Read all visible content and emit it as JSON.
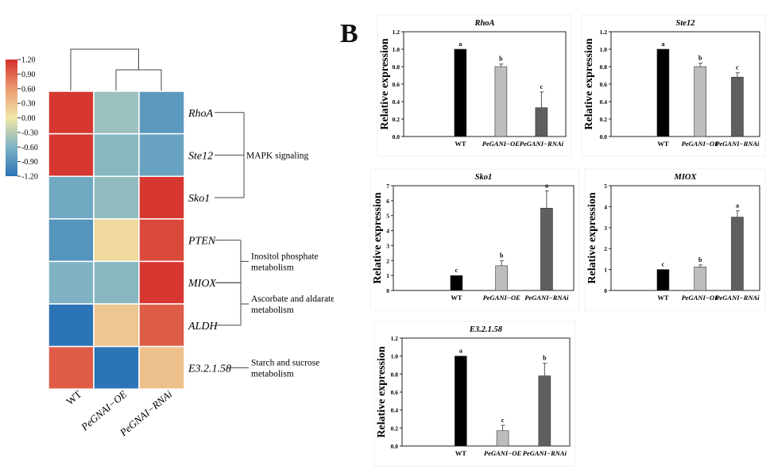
{
  "colors": {
    "wt": "#000000",
    "oe": "#bdbdbd",
    "rnai": "#5f5f5f",
    "heat_high": "#d42f2b",
    "heat_mid": "#f0e6a6",
    "heat_low": "#2b74b6"
  },
  "heatmap": {
    "legend_ticks": [
      "1.20",
      "0.90",
      "0.60",
      "0.30",
      "0.00",
      "-0.30",
      "-0.60",
      "-0.90",
      "-1.20"
    ],
    "row_labels": [
      "RhoA",
      "Ste12",
      "Sko1",
      "PTEN",
      "MIOX",
      "ALDH",
      "E3.2.1.58"
    ],
    "col_labels": [
      "WT",
      "PeGNAI−OE",
      "PeGNAI−RNAi"
    ],
    "groups": [
      {
        "label_lines": [
          "MAPK signaling"
        ]
      },
      {
        "label_lines": [
          "Inositol phosphate",
          "metabolism"
        ]
      },
      {
        "label_lines": [
          "Ascorbate and aldarate",
          "metabolism"
        ]
      },
      {
        "label_lines": [
          "Starch and sucrose",
          "metabolism"
        ]
      }
    ]
  },
  "panel_b_label": "B",
  "chart_data": [
    {
      "type": "heatmap",
      "rows": [
        "RhoA",
        "Ste12",
        "Sko1",
        "PTEN",
        "MIOX",
        "ALDH",
        "E3.2.1.58"
      ],
      "columns": [
        "WT",
        "PeGNAI−OE",
        "PeGNAI−RNAi"
      ],
      "values": [
        [
          1.15,
          -0.45,
          -0.85
        ],
        [
          1.15,
          -0.55,
          -0.75
        ],
        [
          -0.7,
          -0.5,
          1.15
        ],
        [
          -0.9,
          0.1,
          1.05
        ],
        [
          -0.6,
          -0.55,
          1.15
        ],
        [
          -1.2,
          0.25,
          0.95
        ],
        [
          0.95,
          -1.2,
          0.3
        ]
      ],
      "color_range": [
        -1.2,
        1.2
      ]
    },
    {
      "type": "bar",
      "title": "RhoA",
      "ylabel": "Relative expression",
      "categories": [
        "WT",
        "PeGANI−OE",
        "PeGANI−RNAi"
      ],
      "values": [
        1.0,
        0.8,
        0.33
      ],
      "errors": [
        0.0,
        0.03,
        0.18
      ],
      "letters": [
        "a",
        "b",
        "c"
      ],
      "ylim": [
        0,
        1.2
      ],
      "yticks": [
        "0.0",
        "0.2",
        "0.4",
        "0.6",
        "0.8",
        "1.0",
        "1.2"
      ]
    },
    {
      "type": "bar",
      "title": "Ste12",
      "ylabel": "Relative expression",
      "categories": [
        "WT",
        "PeGANI−OE",
        "PeGANI−RNAi"
      ],
      "values": [
        1.0,
        0.8,
        0.68
      ],
      "errors": [
        0.0,
        0.04,
        0.05
      ],
      "letters": [
        "a",
        "b",
        "c"
      ],
      "ylim": [
        0,
        1.2
      ],
      "yticks": [
        "0.0",
        "0.2",
        "0.4",
        "0.6",
        "0.8",
        "1.0",
        "1.2"
      ]
    },
    {
      "type": "bar",
      "title": "Sko1",
      "ylabel": "Relative expression",
      "categories": [
        "WT",
        "PeGANI−OE",
        "PeGANI−RNAi"
      ],
      "values": [
        1.0,
        1.65,
        5.5
      ],
      "errors": [
        0.0,
        0.35,
        1.15
      ],
      "letters": [
        "c",
        "b",
        "a"
      ],
      "ylim": [
        0,
        7
      ],
      "yticks": [
        "0",
        "1",
        "2",
        "3",
        "4",
        "5",
        "6",
        "7"
      ]
    },
    {
      "type": "bar",
      "title": "MIOX",
      "ylabel": "Relative expression",
      "categories": [
        "WT",
        "PeGANI−OE",
        "PeGANI−RNAi"
      ],
      "values": [
        1.0,
        1.12,
        3.5
      ],
      "errors": [
        0.0,
        0.1,
        0.3
      ],
      "letters": [
        "c",
        "b",
        "a"
      ],
      "ylim": [
        0,
        5
      ],
      "yticks": [
        "0",
        "1",
        "2",
        "3",
        "4",
        "5"
      ]
    },
    {
      "type": "bar",
      "title": "E3.2.1.58",
      "ylabel": "Relative expression",
      "categories": [
        "WT",
        "PeGANI−OE",
        "PeGANI−RNAi"
      ],
      "values": [
        1.0,
        0.17,
        0.78
      ],
      "errors": [
        0.0,
        0.06,
        0.14
      ],
      "letters": [
        "a",
        "c",
        "b"
      ],
      "ylim": [
        0,
        1.2
      ],
      "yticks": [
        "0.0",
        "0.2",
        "0.4",
        "0.6",
        "0.8",
        "1.0",
        "1.2"
      ]
    }
  ]
}
